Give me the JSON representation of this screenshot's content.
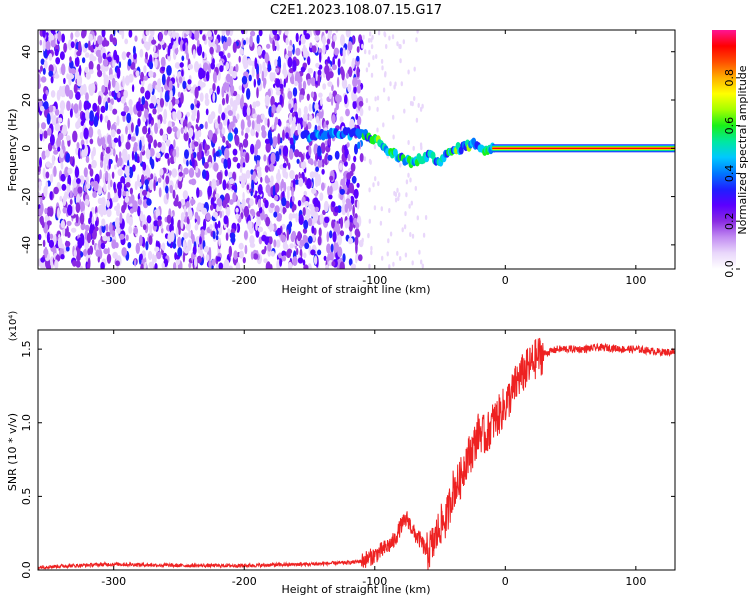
{
  "figure": {
    "title": "C2E1.2023.108.07.15.G17"
  },
  "chart_data": [
    {
      "type": "heatmap",
      "xlabel": "Height of straight line (km)",
      "ylabel": "Frequency (Hz)",
      "xlim": [
        -358,
        130
      ],
      "ylim": [
        -50,
        49
      ],
      "x_ticks": [
        -300,
        -200,
        -100,
        0,
        100
      ],
      "y_ticks": [
        -40,
        -20,
        0,
        20,
        40
      ],
      "grid": false,
      "colorbar": {
        "label": "Normalized spectral amplitude",
        "range": [
          0,
          1
        ],
        "ticks": [
          "0.0",
          "0.2",
          "0.4",
          "0.6",
          "0.8"
        ],
        "colors": [
          "#ffffff",
          "#e9d7fb",
          "#c28cf2",
          "#8a2be2",
          "#5b00ff",
          "#1f1fff",
          "#0077ff",
          "#00c8ff",
          "#00e8a0",
          "#19f019",
          "#a6ff00",
          "#ffff00",
          "#ffb000",
          "#ff4d00",
          "#ff0000",
          "#ff1493"
        ]
      },
      "features": {
        "noise_region_x": [
          -358,
          -110
        ],
        "fading_noise_x": [
          -110,
          -60
        ],
        "signal_track": [
          {
            "x": -155,
            "y": 5
          },
          {
            "x": -130,
            "y": 6
          },
          {
            "x": -110,
            "y": 6
          },
          {
            "x": -100,
            "y": 4
          },
          {
            "x": -90,
            "y": -1
          },
          {
            "x": -80,
            "y": -4
          },
          {
            "x": -70,
            "y": -6
          },
          {
            "x": -60,
            "y": -3
          },
          {
            "x": -50,
            "y": -5
          },
          {
            "x": -40,
            "y": -1
          },
          {
            "x": -30,
            "y": 1
          },
          {
            "x": -22,
            "y": 2
          },
          {
            "x": -15,
            "y": -1
          },
          {
            "x": -8,
            "y": 0
          },
          {
            "x": 0,
            "y": 0
          },
          {
            "x": 130,
            "y": 0
          }
        ],
        "stable_carrier_x": [
          -10,
          130
        ]
      }
    },
    {
      "type": "line",
      "xlabel": "Height of straight line (km)",
      "ylabel": "SNR (10 * v/v)",
      "y_multiplier": "(x10⁴)",
      "xlim": [
        -358,
        130
      ],
      "ylim": [
        0,
        1.63
      ],
      "x_ticks": [
        -300,
        -200,
        -100,
        0,
        100
      ],
      "y_ticks": [
        "0.0",
        "0.5",
        "1.0",
        "1.5"
      ],
      "y_tick_values": [
        0,
        0.5,
        1.0,
        1.5
      ],
      "grid": false,
      "color": "#ee2222",
      "series": [
        {
          "x": [
            -358,
            -300,
            -250,
            -200,
            -150,
            -120,
            -110,
            -100,
            -90,
            -85,
            -80,
            -75,
            -70,
            -65,
            -60,
            -55,
            -50,
            -45,
            -40,
            -35,
            -30,
            -25,
            -20,
            -15,
            -10,
            -5,
            0,
            5,
            10,
            15,
            20,
            25,
            30,
            40,
            50,
            60,
            70,
            80,
            90,
            100,
            110,
            120,
            130
          ],
          "values": [
            0.02,
            0.04,
            0.03,
            0.03,
            0.04,
            0.05,
            0.06,
            0.1,
            0.16,
            0.2,
            0.3,
            0.35,
            0.25,
            0.2,
            0.12,
            0.18,
            0.3,
            0.35,
            0.55,
            0.6,
            0.75,
            0.82,
            0.95,
            0.9,
            1.0,
            1.05,
            1.12,
            1.2,
            1.3,
            1.35,
            1.4,
            1.45,
            1.47,
            1.5,
            1.5,
            1.5,
            1.51,
            1.51,
            1.5,
            1.5,
            1.49,
            1.48,
            1.48
          ]
        }
      ]
    }
  ]
}
